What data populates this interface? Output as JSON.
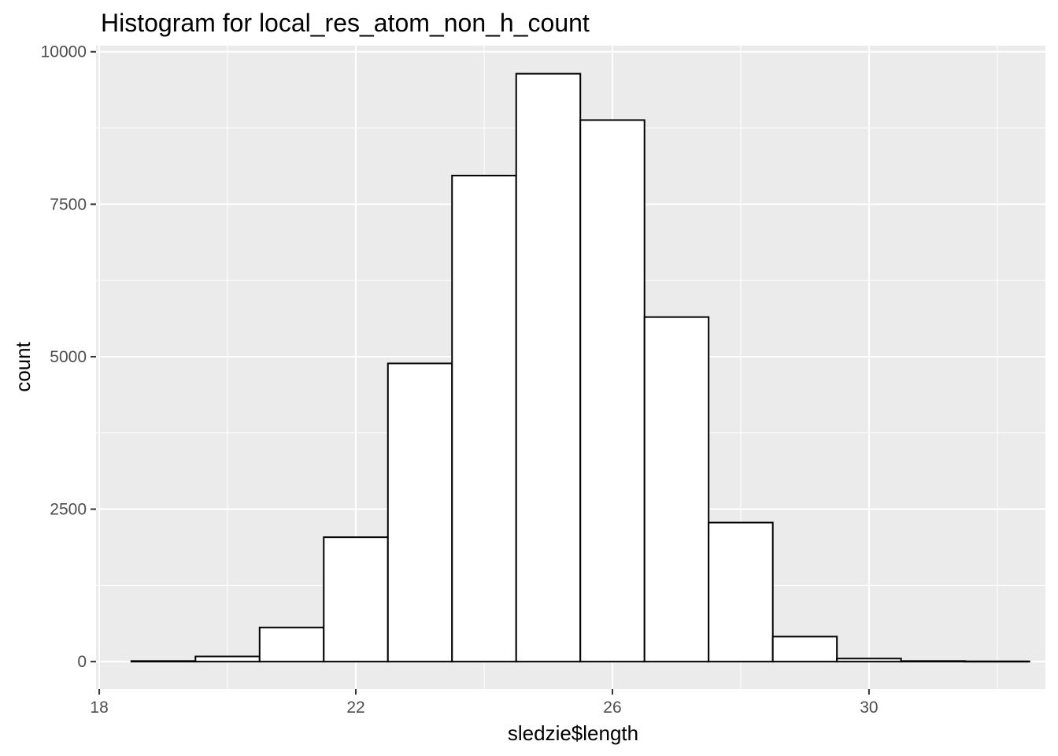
{
  "chart_data": {
    "type": "bar",
    "title": "Histogram for local_res_atom_non_h_count",
    "xlabel": "sledzie$length",
    "ylabel": "count",
    "xlim": [
      17.95,
      32.75
    ],
    "ylim": [
      -450,
      10100
    ],
    "x_ticks": [
      18,
      22,
      26,
      30
    ],
    "y_ticks": [
      0,
      2500,
      5000,
      7500,
      10000
    ],
    "bin_width": 1,
    "bins": [
      {
        "center": 19,
        "count": 10
      },
      {
        "center": 20,
        "count": 85
      },
      {
        "center": 21,
        "count": 560
      },
      {
        "center": 22,
        "count": 2040
      },
      {
        "center": 23,
        "count": 4890
      },
      {
        "center": 24,
        "count": 7970
      },
      {
        "center": 25,
        "count": 9640
      },
      {
        "center": 26,
        "count": 8880
      },
      {
        "center": 27,
        "count": 5650
      },
      {
        "center": 28,
        "count": 2280
      },
      {
        "center": 29,
        "count": 410
      },
      {
        "center": 30,
        "count": 50
      },
      {
        "center": 31,
        "count": 10
      },
      {
        "center": 32,
        "count": 5
      }
    ],
    "bar_fill": "#ffffff",
    "bar_stroke": "#000000",
    "panel_background": "#ebebeb",
    "grid_color": "#ffffff",
    "grid": true,
    "legend": "none"
  }
}
